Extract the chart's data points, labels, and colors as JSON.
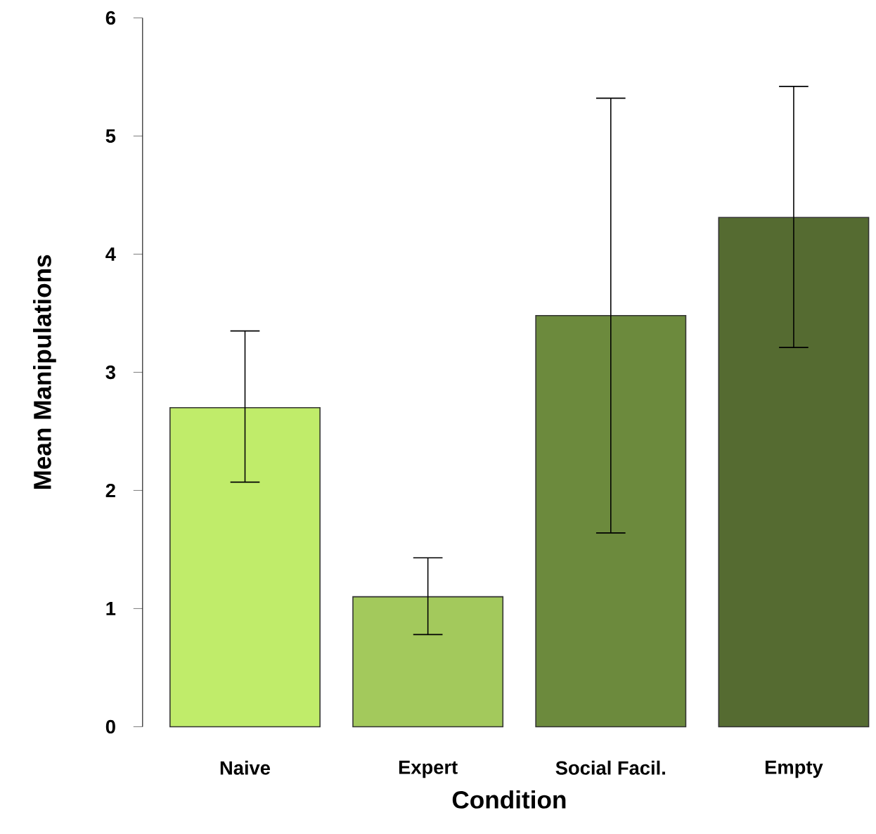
{
  "chart_data": {
    "type": "bar",
    "xlabel": "Condition",
    "ylabel": "Mean Manipulations",
    "categories": [
      "Naive",
      "Expert",
      "Social Facil.",
      "Empty"
    ],
    "values": [
      2.7,
      1.1,
      3.48,
      4.31
    ],
    "colors": [
      "#c0ec6a",
      "#a3c95c",
      "#6c8a3d",
      "#556b31"
    ],
    "errors": [
      [
        2.07,
        3.35
      ],
      [
        0.78,
        1.43
      ],
      [
        1.64,
        5.32
      ],
      [
        3.21,
        5.42
      ]
    ],
    "ylim": [
      0,
      6
    ],
    "yticks": [
      0,
      1,
      2,
      3,
      4,
      5,
      6
    ]
  }
}
